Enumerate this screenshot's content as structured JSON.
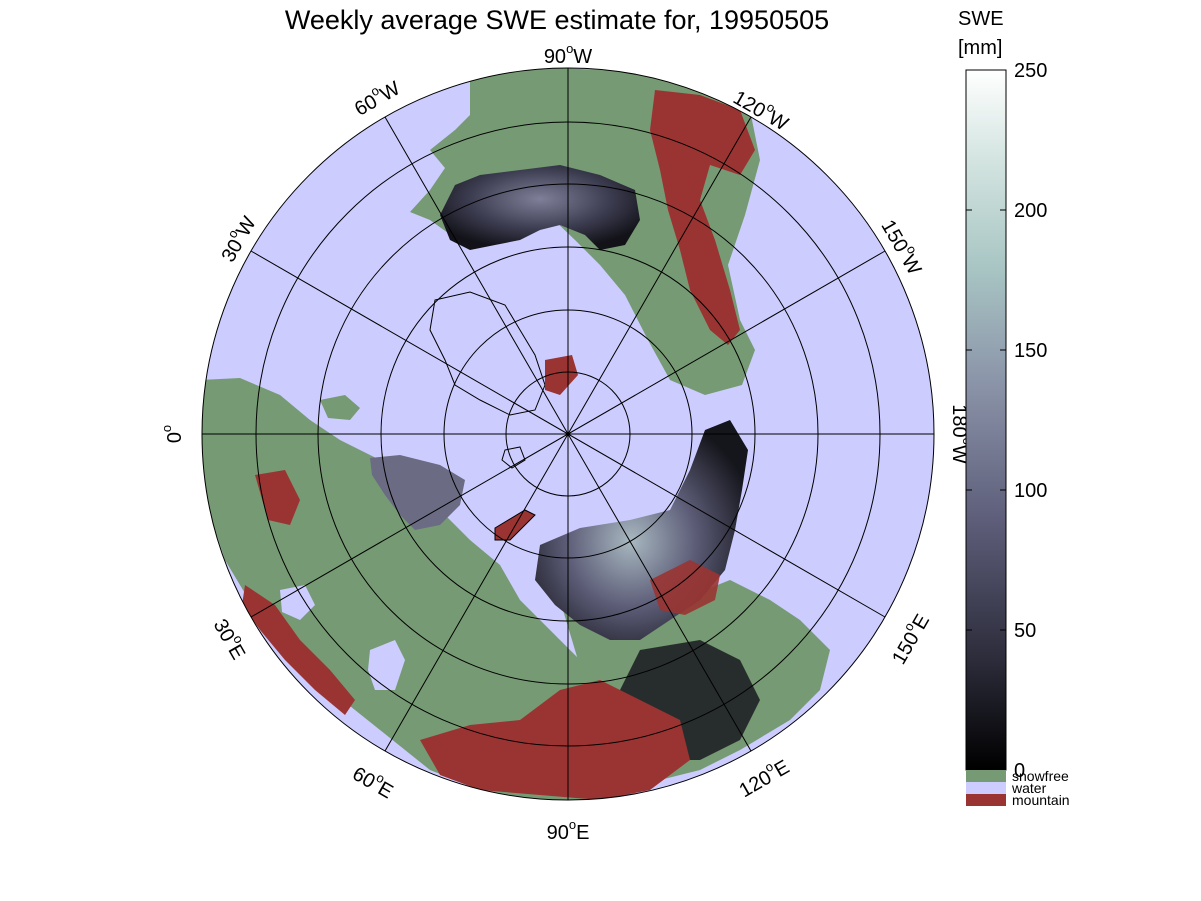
{
  "figure": {
    "title": "Weekly average SWE estimate for, 19950505",
    "projection": "north polar stereographic",
    "background_color": "#ffffff"
  },
  "colors": {
    "water": "#ccccff",
    "snowfree": "#769a73",
    "mountain": "#9a3432",
    "grid": "#000000",
    "coastline": "#000000"
  },
  "longitude_labels": [
    {
      "id": "90W",
      "deg": "90",
      "hem": "W"
    },
    {
      "id": "120W",
      "deg": "120",
      "hem": "W"
    },
    {
      "id": "150W",
      "deg": "150",
      "hem": "W"
    },
    {
      "id": "180W",
      "deg": "180",
      "hem": "W"
    },
    {
      "id": "150E",
      "deg": "150",
      "hem": "E"
    },
    {
      "id": "120E",
      "deg": "120",
      "hem": "E"
    },
    {
      "id": "90E",
      "deg": "90",
      "hem": "E"
    },
    {
      "id": "60E",
      "deg": "60",
      "hem": "E"
    },
    {
      "id": "30E",
      "deg": "30",
      "hem": "E"
    },
    {
      "id": "0",
      "deg": "0",
      "hem": ""
    },
    {
      "id": "30W",
      "deg": "30",
      "hem": "W"
    },
    {
      "id": "60W",
      "deg": "60",
      "hem": "W"
    }
  ],
  "colorbar": {
    "title_line1": "SWE",
    "title_line2": "[mm]",
    "min": 0,
    "max": 250,
    "ticks": [
      "0",
      "50",
      "100",
      "150",
      "200",
      "250"
    ],
    "gradient": [
      "#000000",
      "#2a2a38",
      "#5c5c78",
      "#8a93a8",
      "#a9c6c4",
      "#d6e6e2",
      "#ffffff"
    ],
    "categories": [
      {
        "label": "snowfree",
        "color": "#769a73"
      },
      {
        "label": "water",
        "color": "#ccccff"
      },
      {
        "label": "mountain",
        "color": "#9a3432"
      }
    ]
  }
}
